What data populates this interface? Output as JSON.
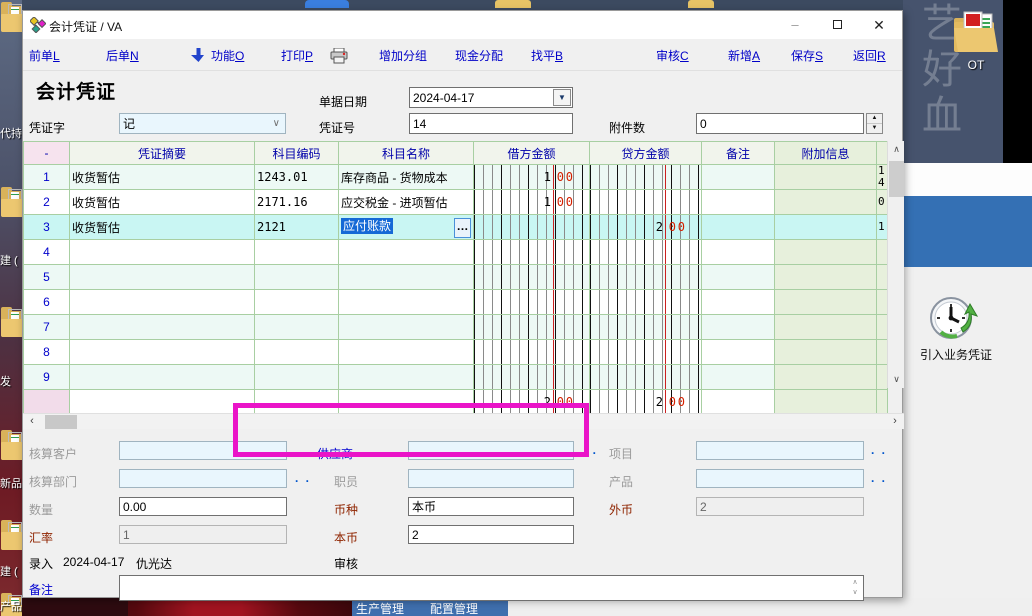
{
  "window": {
    "title": "会计凭证 / VA",
    "minimize": "—",
    "close": "✕"
  },
  "toolbar": {
    "left": [
      {
        "text": "前单",
        "key": "L"
      },
      {
        "text": "后单",
        "key": "N"
      },
      {
        "text": "功能",
        "key": "O"
      },
      {
        "text": "打印",
        "key": "P"
      },
      {
        "text": "增加分组",
        "key": ""
      },
      {
        "text": "现金分配",
        "key": ""
      },
      {
        "text": "找平",
        "key": "B"
      }
    ],
    "right": [
      {
        "text": "审核",
        "key": "C"
      },
      {
        "text": "新增",
        "key": "A"
      },
      {
        "text": "保存",
        "key": "S"
      },
      {
        "text": "返回",
        "key": "R"
      }
    ]
  },
  "header": {
    "form_title": "会计凭证",
    "voucher_word_label": "凭证字",
    "voucher_word_value": "记",
    "date_label": "单据日期",
    "date_value": "2024-04-17",
    "voucher_no_label": "凭证号",
    "voucher_no_value": "14",
    "attachment_label": "附件数",
    "attachment_value": "0"
  },
  "table": {
    "headers": [
      "-",
      "凭证摘要",
      "科目编码",
      "科目名称",
      "借方金额",
      "贷方金额",
      "备注",
      "附加信息",
      ""
    ],
    "rows": [
      {
        "num": "1",
        "summary": "收货暂估",
        "code": "1243.01",
        "name": "库存商品 - 货物成本",
        "debit": "1.00",
        "credit": "",
        "note": "",
        "extra": "14"
      },
      {
        "num": "2",
        "summary": "收货暂估",
        "code": "2171.16",
        "name": "应交税金 - 进项暂估",
        "debit": "1.00",
        "credit": "",
        "note": "",
        "extra": "0"
      },
      {
        "num": "3",
        "summary": "收货暂估",
        "code": "2121",
        "name": "应付账款",
        "debit": "",
        "credit": "2.00",
        "note": "",
        "extra": "1",
        "selected": true,
        "editing": true
      },
      {
        "num": "4"
      },
      {
        "num": "5"
      },
      {
        "num": "6"
      },
      {
        "num": "7"
      },
      {
        "num": "8"
      },
      {
        "num": "9"
      }
    ],
    "totals": {
      "debit": "2.00",
      "credit": "2.00"
    },
    "lookup_button": "…"
  },
  "footer_form": {
    "customer_label": "核算客户",
    "supplier_label": "供应商",
    "project_label": "项目",
    "department_label": "核算部门",
    "staff_label": "职员",
    "product_label": "产品",
    "quantity_label": "数量",
    "quantity_value": "0.00",
    "currency_label": "币种",
    "currency_value": "本币",
    "foreign_label": "外币",
    "foreign_value": "2",
    "rate_label": "汇率",
    "rate_value": "1",
    "local_label": "本币",
    "local_value": "2",
    "entry_label": "录入",
    "entry_date": "2024-04-17",
    "entry_user": "仇光达",
    "audit_label": "审核",
    "note_label": "备注",
    "note_value": "",
    "browse_dots": ". ."
  },
  "desktop": {
    "ot_icon_label": "OT",
    "import_icon_label": "引入业务凭证",
    "taskbar_items": [
      "生产管理",
      "配置管理"
    ],
    "left_icon_labels": [
      "代持",
      "建 (",
      "发",
      "新品",
      "建 (",
      "产品"
    ],
    "wallpaper_chars": "艺好血"
  },
  "colors": {
    "accent_blue": "#0000c8",
    "magenta": "#ea14c8",
    "selection_blue": "#1569d6",
    "grid_green": "#a8cfa2",
    "cents_red": "#d42000",
    "panel_blue": "#3470b4"
  }
}
